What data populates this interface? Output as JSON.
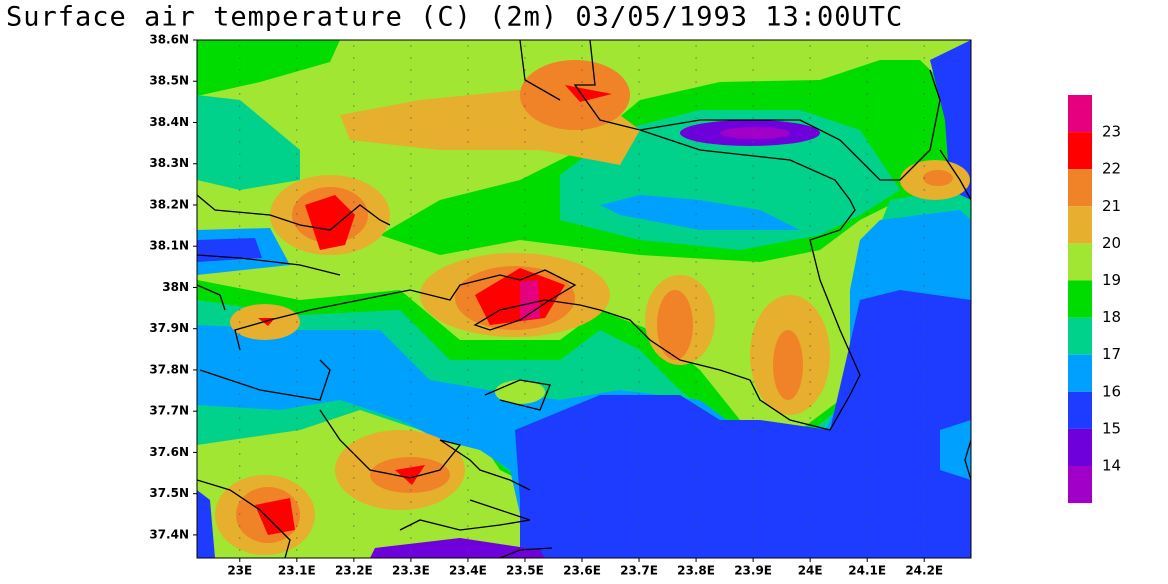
{
  "title": "Surface air temperature (C) (2m) 03/05/1993 13:00UTC",
  "map": {
    "lon_range": [
      22.925,
      24.282
    ],
    "lat_range": [
      37.344,
      38.6
    ],
    "lon_ticks": [
      {
        "value": 23,
        "label": "23E"
      },
      {
        "value": 23.1,
        "label": "23.1E"
      },
      {
        "value": 23.2,
        "label": "23.2E"
      },
      {
        "value": 23.3,
        "label": "23.3E"
      },
      {
        "value": 23.4,
        "label": "23.4E"
      },
      {
        "value": 23.5,
        "label": "23.5E"
      },
      {
        "value": 23.6,
        "label": "23.6E"
      },
      {
        "value": 23.7,
        "label": "23.7E"
      },
      {
        "value": 23.8,
        "label": "23.8E"
      },
      {
        "value": 23.9,
        "label": "23.9E"
      },
      {
        "value": 24,
        "label": "24E"
      },
      {
        "value": 24.1,
        "label": "24.1E"
      },
      {
        "value": 24.2,
        "label": "24.2E"
      }
    ],
    "lat_ticks": [
      {
        "value": 37.4,
        "label": "37.4N"
      },
      {
        "value": 37.5,
        "label": "37.5N"
      },
      {
        "value": 37.6,
        "label": "37.6N"
      },
      {
        "value": 37.7,
        "label": "37.7N"
      },
      {
        "value": 37.8,
        "label": "37.8N"
      },
      {
        "value": 37.9,
        "label": "37.9N"
      },
      {
        "value": 38,
        "label": "38N"
      },
      {
        "value": 38.1,
        "label": "38.1N"
      },
      {
        "value": 38.2,
        "label": "38.2N"
      },
      {
        "value": 38.3,
        "label": "38.3N"
      },
      {
        "value": 38.4,
        "label": "38.4N"
      },
      {
        "value": 38.5,
        "label": "38.5N"
      },
      {
        "value": 38.6,
        "label": "38.6N"
      }
    ]
  },
  "colorbar": {
    "levels": [
      23,
      22,
      21,
      20,
      19,
      18,
      17,
      16,
      15,
      14
    ],
    "colors": [
      "#e6007f",
      "#ff0000",
      "#f08228",
      "#e6af2d",
      "#a0e632",
      "#00dc00",
      "#00d28c",
      "#00a0ff",
      "#1e3cff",
      "#6e00dc",
      "#a000c8"
    ]
  }
}
